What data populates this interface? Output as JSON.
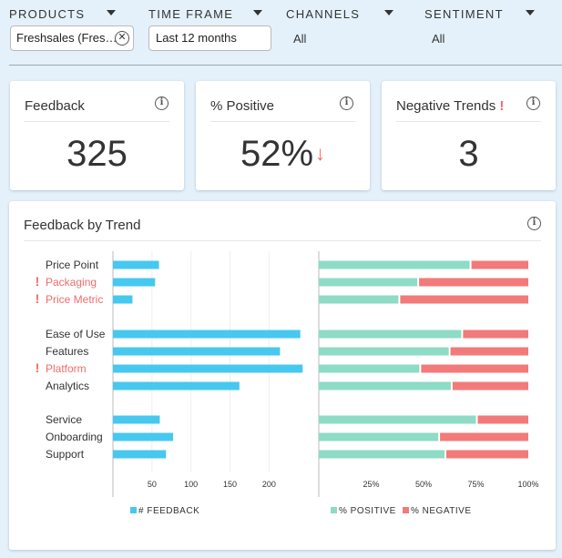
{
  "filters": {
    "products": {
      "label": "PRODUCTS",
      "value": "Freshsales (Fres…",
      "clear_symbol": "✕"
    },
    "time_frame": {
      "label": "TIME FRAME",
      "value": "Last 12 months"
    },
    "channels": {
      "label": "CHANNELS",
      "value": "All"
    },
    "sentiment": {
      "label": "SENTIMENT",
      "value": "All"
    }
  },
  "kpis": {
    "feedback": {
      "title": "Feedback",
      "value": "325"
    },
    "positive": {
      "title": "% Positive",
      "value": "52%",
      "trend_symbol": "↓"
    },
    "negative_trends": {
      "title": "Negative Trends",
      "alert": "!",
      "value": "3"
    }
  },
  "info_symbol": "i",
  "chart": {
    "title": "Feedback by Trend"
  },
  "colors": {
    "feedback": "#47c8ee",
    "positive": "#8edbc6",
    "negative": "#f27a7a",
    "alert": "#f06b6b"
  },
  "chart_data": {
    "type": "bar",
    "title": "Feedback by Trend",
    "groups": [
      [
        "Price Point",
        "Packaging",
        "Price Metric"
      ],
      [
        "Ease of Use",
        "Features",
        "Platform",
        "Analytics"
      ],
      [
        "Service",
        "Onboarding",
        "Support"
      ]
    ],
    "categories": [
      "Price Point",
      "Packaging",
      "Price Metric",
      "Ease of Use",
      "Features",
      "Platform",
      "Analytics",
      "Service",
      "Onboarding",
      "Support"
    ],
    "flagged": [
      false,
      true,
      true,
      false,
      false,
      true,
      false,
      false,
      false,
      false
    ],
    "feedback": {
      "name": "# FEEDBACK",
      "values": [
        59,
        54,
        25,
        240,
        214,
        243,
        162,
        60,
        77,
        68
      ],
      "ticks": [
        "50",
        "100",
        "150",
        "200"
      ],
      "xlim": [
        0,
        270
      ]
    },
    "sentiment": {
      "positive_name": "% POSITIVE",
      "negative_name": "% NEGATIVE",
      "positive_pct": [
        72,
        47,
        38,
        68,
        62,
        48,
        63,
        75,
        57,
        60
      ],
      "ticks": [
        "25%",
        "50%",
        "75%",
        "100%"
      ]
    }
  }
}
